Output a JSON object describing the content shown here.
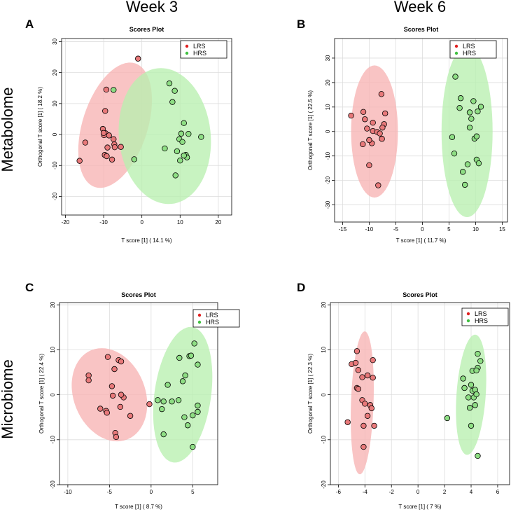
{
  "figure": {
    "column_titles": [
      "Week 3",
      "Week 6"
    ],
    "row_titles": [
      "Metabolome",
      "Microbiome"
    ]
  },
  "colors": {
    "LRS_point": "#e8797a",
    "HRS_point": "#8ede84",
    "LRS_ellipse": "#f7b4b4",
    "HRS_ellipse": "#b9efb0",
    "LRS_legend": "#e02020",
    "HRS_legend": "#40c040",
    "grid": "#dddddd"
  },
  "chart_data": [
    {
      "type": "scatter",
      "panel": "A",
      "title": "Scores Plot",
      "xlabel": "T score [1] ( 14.1 %)",
      "ylabel": "Orthogonal T score [1] ( 18.2 %)",
      "xlim": [
        -21,
        23.5
      ],
      "ylim": [
        -26,
        31
      ],
      "xticks": [
        -20,
        -10,
        0,
        10,
        20
      ],
      "yticks": [
        -20,
        -10,
        0,
        10,
        20,
        30
      ],
      "legend": [
        "LRS",
        "HRS"
      ],
      "legend_position": "top-right",
      "ellipses": [
        {
          "group": "LRS",
          "cx": -7,
          "cy": 3,
          "rx": 8.5,
          "ry": 21,
          "angle": 18
        },
        {
          "group": "HRS",
          "cx": 6,
          "cy": -0.5,
          "rx": 12,
          "ry": 22,
          "angle": -6
        }
      ],
      "series": [
        {
          "name": "LRS",
          "points": [
            [
              -16.3,
              -8.5
            ],
            [
              -14.8,
              -2.6
            ],
            [
              -10.2,
              1.8
            ],
            [
              -9.5,
              0.4
            ],
            [
              -9.9,
              -0.2
            ],
            [
              -9.3,
              14.5
            ],
            [
              -9.6,
              7.6
            ],
            [
              -8.6,
              -0.3
            ],
            [
              -7.4,
              -1.5
            ],
            [
              -7.2,
              -3.2
            ],
            [
              -7.1,
              -4.1
            ],
            [
              -9.7,
              -6.6
            ],
            [
              -9.2,
              -7.0
            ],
            [
              -7.8,
              -8.1
            ],
            [
              -9.0,
              -4.2
            ],
            [
              -5.5,
              -4.0
            ],
            [
              -10.0,
              0.5
            ],
            [
              -1.0,
              24.5
            ]
          ]
        },
        {
          "name": "HRS",
          "points": [
            [
              -7.4,
              14.4
            ],
            [
              -2.0,
              -8.0
            ],
            [
              6.0,
              -4.5
            ],
            [
              7.2,
              16.5
            ],
            [
              8.0,
              10.5
            ],
            [
              8.6,
              14.1
            ],
            [
              9.2,
              -5.4
            ],
            [
              9.8,
              -1.5
            ],
            [
              10.0,
              -8.4
            ],
            [
              10.3,
              0.3
            ],
            [
              10.6,
              -2.4
            ],
            [
              11.0,
              3.7
            ],
            [
              11.5,
              -6.6
            ],
            [
              11.8,
              -7.4
            ],
            [
              12.2,
              0.2
            ],
            [
              15.5,
              -0.8
            ],
            [
              8.8,
              -13.2
            ],
            [
              11.0,
              -6.8
            ]
          ]
        }
      ]
    },
    {
      "type": "scatter",
      "panel": "B",
      "title": "Scores Plot",
      "xlabel": "T score [1] ( 11.7 %)",
      "ylabel": "Orthogonal T score [1] ( 22.5 %)",
      "xlim": [
        -16.5,
        16
      ],
      "ylim": [
        -37,
        38
      ],
      "xticks": [
        -15,
        -10,
        -5,
        0,
        5,
        10,
        15
      ],
      "yticks": [
        -30,
        -20,
        -10,
        0,
        10,
        20,
        30
      ],
      "legend": [
        "LRS",
        "HRS"
      ],
      "legend_position": "top-right",
      "ellipses": [
        {
          "group": "LRS",
          "cx": -9,
          "cy": 0,
          "rx": 4.4,
          "ry": 27,
          "angle": 0
        },
        {
          "group": "HRS",
          "cx": 8.4,
          "cy": 0,
          "rx": 4.8,
          "ry": 35,
          "angle": 0
        }
      ],
      "series": [
        {
          "name": "LRS",
          "points": [
            [
              -13.4,
              6.5
            ],
            [
              -11.1,
              8.0
            ],
            [
              -10.8,
              5.0
            ],
            [
              -10.4,
              1.2
            ],
            [
              -9.3,
              3.6
            ],
            [
              -9.3,
              0.2
            ],
            [
              -8.5,
              -0.2
            ],
            [
              -8.0,
              -0.8
            ],
            [
              -7.7,
              15.3
            ],
            [
              -7.0,
              7.4
            ],
            [
              -7.2,
              3.0
            ],
            [
              -7.5,
              1.6
            ],
            [
              -7.6,
              -3.0
            ],
            [
              -9.5,
              -4.8
            ],
            [
              -11.2,
              -5.2
            ],
            [
              -10.0,
              -13.8
            ],
            [
              -8.3,
              -22.0
            ],
            [
              -10.0,
              -3.5
            ]
          ]
        },
        {
          "name": "HRS",
          "points": [
            [
              5.6,
              -2.3
            ],
            [
              6.2,
              22.4
            ],
            [
              7.0,
              9.6
            ],
            [
              7.2,
              13.6
            ],
            [
              7.6,
              -16.5
            ],
            [
              8.0,
              -21.8
            ],
            [
              8.5,
              -13.4
            ],
            [
              8.9,
              7.8
            ],
            [
              8.9,
              1.6
            ],
            [
              9.2,
              5.2
            ],
            [
              9.6,
              12.4
            ],
            [
              9.8,
              -2.9
            ],
            [
              10.2,
              -2.0
            ],
            [
              10.2,
              -11.5
            ],
            [
              10.6,
              -13.0
            ],
            [
              10.4,
              8.2
            ],
            [
              11.0,
              10.1
            ],
            [
              6.0,
              -9.0
            ]
          ]
        }
      ]
    },
    {
      "type": "scatter",
      "panel": "C",
      "title": "Scores Plot",
      "xlabel": "T score [1] ( 8.7 %)",
      "ylabel": "Orthogonal T score [1] ( 22.4 %)",
      "xlim": [
        -11,
        8
      ],
      "ylim": [
        -20,
        20.5
      ],
      "xticks": [
        -10,
        -5,
        0,
        5
      ],
      "yticks": [
        -20,
        -10,
        0,
        10,
        20
      ],
      "legend": [
        "LRS",
        "HRS"
      ],
      "legend_position": "top-right",
      "ellipses": [
        {
          "group": "LRS",
          "cx": -5,
          "cy": 0,
          "rx": 4.3,
          "ry": 10.7,
          "angle": -22
        },
        {
          "group": "HRS",
          "cx": 3.8,
          "cy": 0,
          "rx": 3.4,
          "ry": 15.2,
          "angle": 8
        }
      ],
      "series": [
        {
          "name": "LRS",
          "points": [
            [
              -7.5,
              4.3
            ],
            [
              -7.5,
              3.2
            ],
            [
              -6.1,
              -3.1
            ],
            [
              -5.4,
              -3.6
            ],
            [
              -5.3,
              -4.0
            ],
            [
              -5.2,
              8.4
            ],
            [
              -4.7,
              1.9
            ],
            [
              -4.6,
              -0.2
            ],
            [
              -4.4,
              5.7
            ],
            [
              -4.3,
              -8.5
            ],
            [
              -4.2,
              -9.4
            ],
            [
              -3.9,
              7.7
            ],
            [
              -3.6,
              7.4
            ],
            [
              -3.7,
              -2.7
            ],
            [
              -3.3,
              -0.6
            ],
            [
              -2.5,
              -4.7
            ],
            [
              -0.2,
              -2.1
            ],
            [
              -3.6,
              0.0
            ]
          ]
        },
        {
          "name": "HRS",
          "points": [
            [
              0.8,
              -1.2
            ],
            [
              1.3,
              -3.2
            ],
            [
              1.5,
              -1.5
            ],
            [
              2.0,
              2.2
            ],
            [
              2.5,
              -1.5
            ],
            [
              3.4,
              8.2
            ],
            [
              3.3,
              -1.2
            ],
            [
              3.8,
              3.0
            ],
            [
              4.0,
              -5.0
            ],
            [
              4.1,
              4.3
            ],
            [
              4.4,
              -6.8
            ],
            [
              4.6,
              8.6
            ],
            [
              4.8,
              8.7
            ],
            [
              5.0,
              -4.6
            ],
            [
              5.2,
              11.4
            ],
            [
              5.6,
              6.7
            ],
            [
              5.6,
              -2.4
            ],
            [
              5.6,
              -3.8
            ],
            [
              5.0,
              -11.6
            ],
            [
              1.5,
              -8.8
            ]
          ]
        }
      ]
    },
    {
      "type": "scatter",
      "panel": "D",
      "title": "Scores Plot",
      "xlabel": "T score [1] ( 7 %)",
      "ylabel": "Orthogonal T score [1] ( 22.3 %)",
      "xlim": [
        -6.6,
        6.9
      ],
      "ylim": [
        -20,
        20.5
      ],
      "xticks": [
        -6,
        -4,
        -2,
        0,
        2,
        4,
        6
      ],
      "yticks": [
        -20,
        -10,
        0,
        10,
        20
      ],
      "legend": [
        "LRS",
        "HRS"
      ],
      "legend_position": "top-right",
      "ellipses": [
        {
          "group": "LRS",
          "cx": -4.2,
          "cy": -1.8,
          "rx": 0.85,
          "ry": 15.9,
          "angle": 2
        },
        {
          "group": "HRS",
          "cx": 4.0,
          "cy": 0,
          "rx": 1.1,
          "ry": 13.4,
          "angle": 4
        }
      ],
      "series": [
        {
          "name": "LRS",
          "points": [
            [
              -5.3,
              -6.1
            ],
            [
              -5.0,
              6.8
            ],
            [
              -4.7,
              7.1
            ],
            [
              -4.6,
              9.7
            ],
            [
              -4.6,
              1.5
            ],
            [
              -4.5,
              1.3
            ],
            [
              -4.5,
              5.5
            ],
            [
              -4.2,
              3.9
            ],
            [
              -4.2,
              -1.2
            ],
            [
              -4.1,
              -6.9
            ],
            [
              -4.1,
              -11.6
            ],
            [
              -3.8,
              4.3
            ],
            [
              -3.8,
              -4.7
            ],
            [
              -3.6,
              -2.3
            ],
            [
              -3.5,
              -3.0
            ],
            [
              -3.4,
              7.7
            ],
            [
              -3.4,
              3.8
            ],
            [
              -3.3,
              -6.9
            ],
            [
              -4.0,
              -2.0
            ]
          ]
        },
        {
          "name": "HRS",
          "points": [
            [
              2.2,
              -5.2
            ],
            [
              3.4,
              3.6
            ],
            [
              3.5,
              1.5
            ],
            [
              3.8,
              -0.6
            ],
            [
              3.9,
              -2.9
            ],
            [
              4.0,
              2.2
            ],
            [
              4.0,
              -6.9
            ],
            [
              4.1,
              5.3
            ],
            [
              4.1,
              0.9
            ],
            [
              4.2,
              -0.6
            ],
            [
              4.3,
              -2.3
            ],
            [
              4.3,
              1.1
            ],
            [
              4.4,
              0.1
            ],
            [
              4.5,
              6.0
            ],
            [
              4.5,
              9.1
            ],
            [
              4.7,
              7.5
            ],
            [
              4.5,
              -13.6
            ],
            [
              4.4,
              5.4
            ]
          ]
        }
      ]
    }
  ]
}
